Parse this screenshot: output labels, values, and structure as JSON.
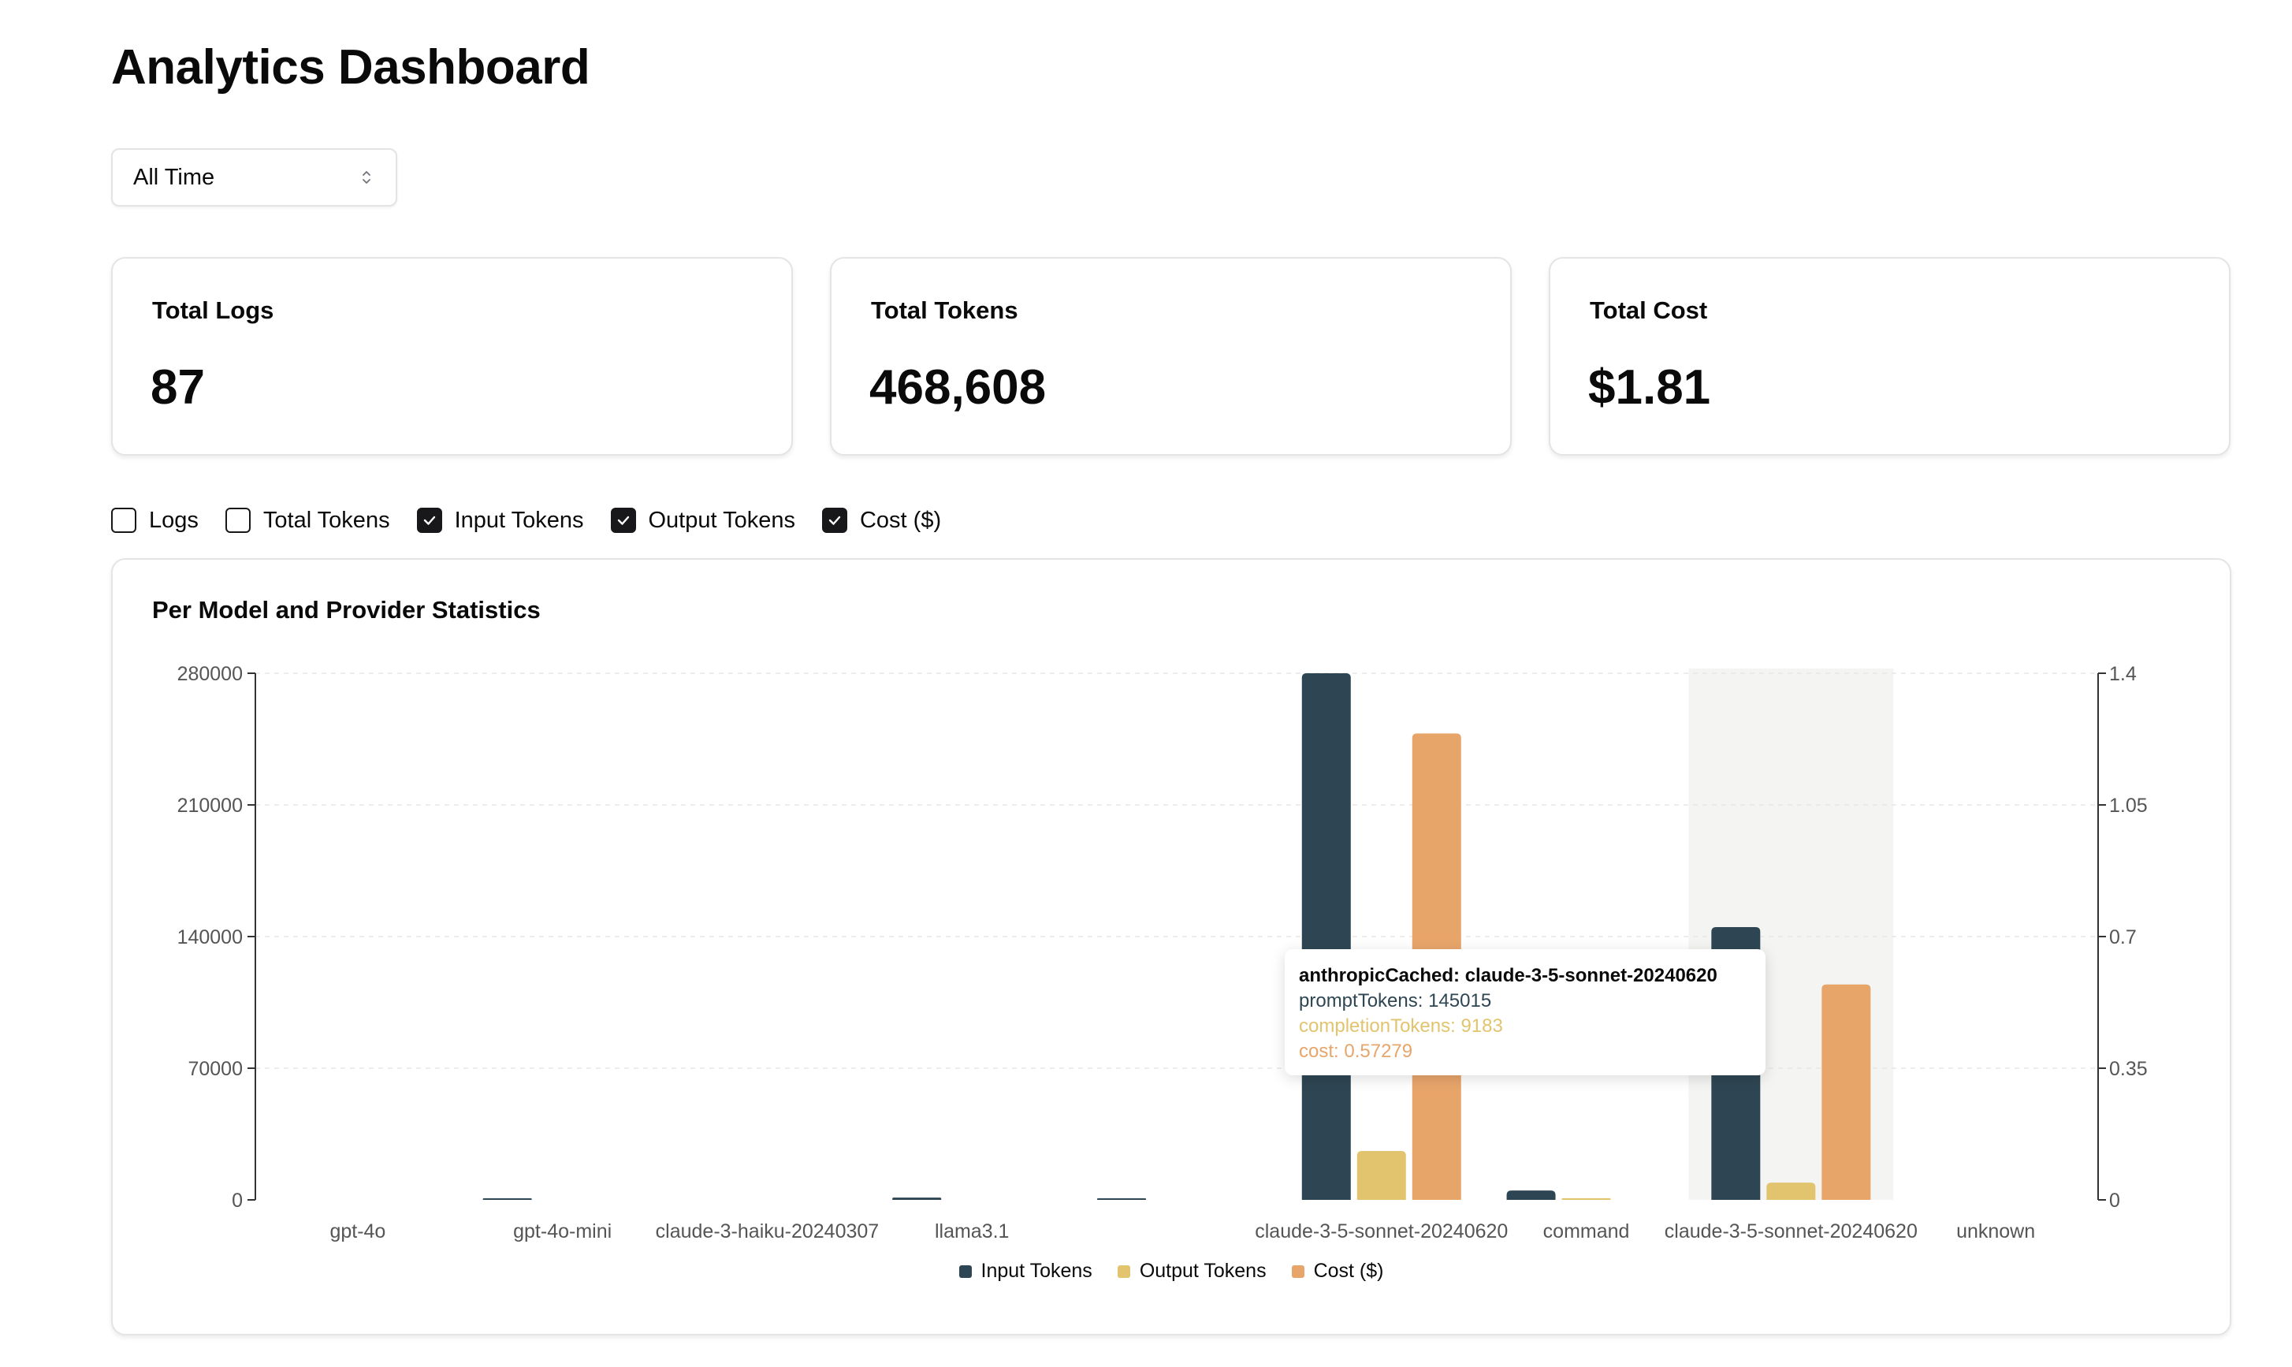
{
  "page_title": "Analytics Dashboard",
  "time_select": {
    "value": "All Time"
  },
  "stats": [
    {
      "label": "Total Logs",
      "value": "87"
    },
    {
      "label": "Total Tokens",
      "value": "468,608"
    },
    {
      "label": "Total Cost",
      "value": "$1.81"
    }
  ],
  "toggles": [
    {
      "label": "Logs",
      "checked": false
    },
    {
      "label": "Total Tokens",
      "checked": false
    },
    {
      "label": "Input Tokens",
      "checked": true
    },
    {
      "label": "Output Tokens",
      "checked": true
    },
    {
      "label": "Cost ($)",
      "checked": true
    }
  ],
  "colors": {
    "input": "#2e4653",
    "output": "#e2c46e",
    "cost": "#e8a56a",
    "highlight": "#f4f4f2"
  },
  "chart_title": "Per Model and Provider Statistics",
  "chart_data": {
    "type": "bar",
    "categories": [
      "gpt-4o",
      "gpt-4o-mini",
      "claude-3-haiku-20240307",
      "llama3.1",
      "",
      "claude-3-5-sonnet-20240620",
      "command",
      "claude-3-5-sonnet-20240620",
      "unknown"
    ],
    "series": [
      {
        "name": "Input Tokens",
        "axis": "left",
        "values": [
          0,
          400,
          0,
          1200,
          500,
          280000,
          5000,
          145015,
          0
        ]
      },
      {
        "name": "Output Tokens",
        "axis": "left",
        "values": [
          0,
          0,
          0,
          0,
          0,
          26000,
          900,
          9183,
          0
        ]
      },
      {
        "name": "Cost ($)",
        "axis": "right",
        "values": [
          0,
          0,
          0,
          0,
          0,
          1.24,
          0,
          0.57279,
          0
        ]
      }
    ],
    "left_axis": {
      "ticks": [
        "0",
        "70000",
        "140000",
        "210000",
        "280000"
      ],
      "min": 0,
      "max": 280000
    },
    "right_axis": {
      "ticks": [
        "0",
        "0.35",
        "0.7",
        "1.05",
        "1.4"
      ],
      "min": 0,
      "max": 1.4
    },
    "grid": true,
    "highlight_index": 7,
    "legend_position": "bottom"
  },
  "tooltip": {
    "title": "anthropicCached: claude-3-5-sonnet-20240620",
    "line1": "promptTokens: 145015",
    "line2": "completionTokens: 9183",
    "line3": "cost: 0.57279"
  }
}
